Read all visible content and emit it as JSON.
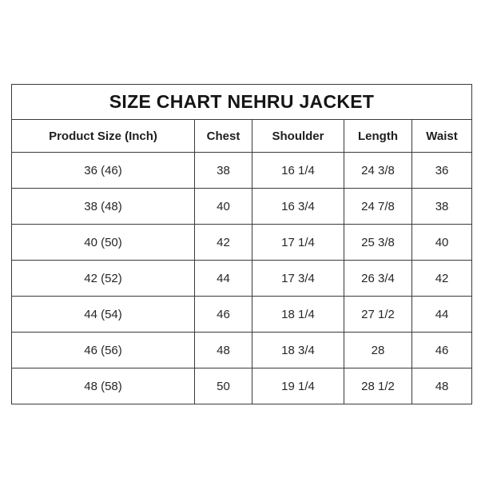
{
  "page": {
    "background_color": "#ffffff",
    "border_color": "#3a3a3a",
    "text_color": "#1f1f1f"
  },
  "table": {
    "title": "SIZE CHART NEHRU JACKET",
    "columns": [
      "Product Size (Inch)",
      "Chest",
      "Shoulder",
      "Length",
      "Waist"
    ],
    "rows": [
      [
        "36 (46)",
        "38",
        "16 1/4",
        "24 3/8",
        "36"
      ],
      [
        "38 (48)",
        "40",
        "16 3/4",
        "24 7/8",
        "38"
      ],
      [
        "40 (50)",
        "42",
        "17 1/4",
        "25 3/8",
        "40"
      ],
      [
        "42 (52)",
        "44",
        "17 3/4",
        "26 3/4",
        "42"
      ],
      [
        "44 (54)",
        "46",
        "18 1/4",
        "27 1/2",
        "44"
      ],
      [
        "46 (56)",
        "48",
        "18 3/4",
        "28",
        "46"
      ],
      [
        "48 (58)",
        "50",
        "19 1/4",
        "28 1/2",
        "48"
      ]
    ]
  },
  "chart_data": {
    "type": "table",
    "title": "SIZE CHART NEHRU JACKET",
    "columns": [
      "Product Size (Inch)",
      "Chest",
      "Shoulder",
      "Length",
      "Waist"
    ],
    "rows": [
      {
        "product_size_inch": "36 (46)",
        "chest": "38",
        "shoulder": "16 1/4",
        "length": "24 3/8",
        "waist": "36"
      },
      {
        "product_size_inch": "38 (48)",
        "chest": "40",
        "shoulder": "16 3/4",
        "length": "24 7/8",
        "waist": "38"
      },
      {
        "product_size_inch": "40 (50)",
        "chest": "42",
        "shoulder": "17 1/4",
        "length": "25 3/8",
        "waist": "40"
      },
      {
        "product_size_inch": "42 (52)",
        "chest": "44",
        "shoulder": "17 3/4",
        "length": "26 3/4",
        "waist": "42"
      },
      {
        "product_size_inch": "44 (54)",
        "chest": "46",
        "shoulder": "18 1/4",
        "length": "27 1/2",
        "waist": "44"
      },
      {
        "product_size_inch": "46 (56)",
        "chest": "48",
        "shoulder": "18 3/4",
        "length": "28",
        "waist": "46"
      },
      {
        "product_size_inch": "48 (58)",
        "chest": "50",
        "shoulder": "19 1/4",
        "length": "28 1/2",
        "waist": "48"
      }
    ],
    "layout": {
      "title_row_spans_all_columns": true,
      "grid": "on",
      "alignment": "center"
    }
  }
}
